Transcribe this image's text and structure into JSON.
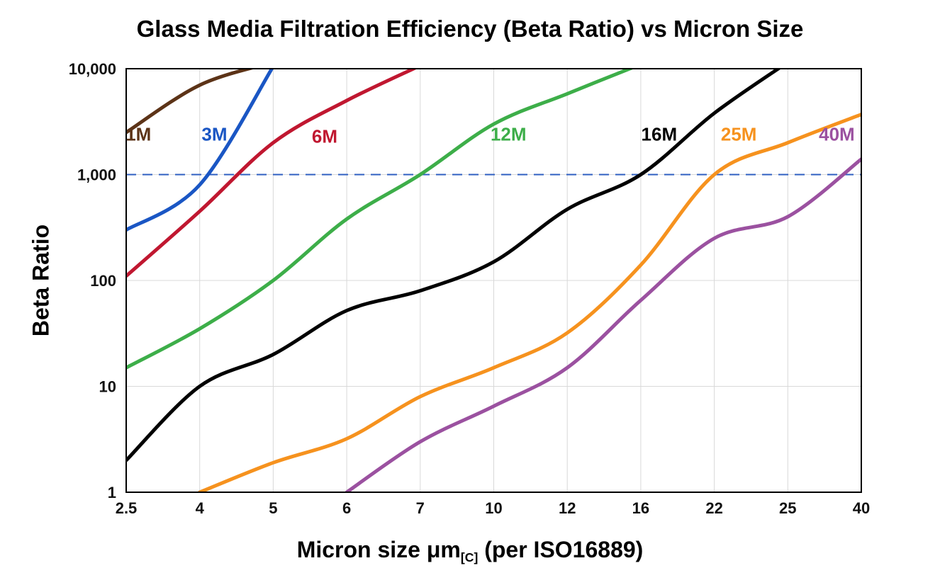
{
  "title": "Glass Media Filtration Efficiency (Beta Ratio) vs Micron Size",
  "chart_data": {
    "type": "line",
    "title": "Glass Media Filtration Efficiency (Beta Ratio) vs Micron Size",
    "ylabel": "Beta Ratio",
    "xlabel": {
      "pre": "Micron size μm",
      "sub": "[C]",
      "post": " (per ISO16889)"
    },
    "x_axis_type": "category-equal-spacing",
    "x_categories": [
      2.5,
      4,
      5,
      6,
      7,
      10,
      12,
      16,
      22,
      25,
      40
    ],
    "x_tick_labels": [
      "2.5",
      "4",
      "5",
      "6",
      "7",
      "10",
      "12",
      "16",
      "22",
      "25",
      "40"
    ],
    "y_scale": "log",
    "ylim": [
      1,
      10000
    ],
    "y_ticks": [
      1,
      10,
      100,
      1000,
      10000
    ],
    "y_tick_labels": [
      "1",
      "10",
      "100",
      "1,000",
      "10,000"
    ],
    "grid": true,
    "grid_color": "#d8d8d8",
    "border_color": "#000000",
    "reference_line": {
      "value": 1000,
      "style": "dashed",
      "color": "#2f5fc1"
    },
    "series": [
      {
        "name": "1M",
        "color": "#5c3317",
        "points": [
          [
            2.5,
            2500
          ],
          [
            4,
            7000
          ],
          [
            5,
            11500
          ]
        ],
        "label_pos": {
          "x": 2.75,
          "y": 2100
        }
      },
      {
        "name": "3M",
        "color": "#1a56c4",
        "points": [
          [
            2.5,
            300
          ],
          [
            4,
            800
          ],
          [
            5,
            10500
          ]
        ],
        "label_pos": {
          "x": 4.2,
          "y": 2100
        }
      },
      {
        "name": "6M",
        "color": "#c01730",
        "points": [
          [
            2.5,
            110
          ],
          [
            4,
            450
          ],
          [
            5,
            2000
          ],
          [
            6,
            5000
          ],
          [
            7,
            10700
          ]
        ],
        "label_pos": {
          "x": 5.7,
          "y": 2000
        }
      },
      {
        "name": "12M",
        "color": "#3dae49",
        "points": [
          [
            2.5,
            15
          ],
          [
            4,
            35
          ],
          [
            5,
            100
          ],
          [
            6,
            380
          ],
          [
            7,
            1000
          ],
          [
            10,
            3000
          ],
          [
            12,
            5800
          ],
          [
            16,
            11000
          ]
        ],
        "label_pos": {
          "x": 10.4,
          "y": 2100
        }
      },
      {
        "name": "16M",
        "color": "#000000",
        "points": [
          [
            2.5,
            2
          ],
          [
            4,
            10
          ],
          [
            5,
            20
          ],
          [
            6,
            52
          ],
          [
            7,
            80
          ],
          [
            10,
            150
          ],
          [
            12,
            470
          ],
          [
            16,
            1000
          ],
          [
            22,
            3800
          ],
          [
            25,
            11500
          ]
        ],
        "label_pos": {
          "x": 17.5,
          "y": 2100
        }
      },
      {
        "name": "25M",
        "color": "#f6921e",
        "points": [
          [
            4,
            1
          ],
          [
            5,
            1.9
          ],
          [
            6,
            3.2
          ],
          [
            7,
            8
          ],
          [
            10,
            15
          ],
          [
            12,
            32
          ],
          [
            16,
            140
          ],
          [
            22,
            1000
          ],
          [
            25,
            2000
          ],
          [
            40,
            3700
          ]
        ],
        "label_pos": {
          "x": 23,
          "y": 2100
        }
      },
      {
        "name": "40M",
        "color": "#9b51a0",
        "points": [
          [
            6,
            1
          ],
          [
            7,
            3
          ],
          [
            10,
            6.5
          ],
          [
            12,
            15
          ],
          [
            16,
            65
          ],
          [
            22,
            250
          ],
          [
            25,
            400
          ],
          [
            40,
            1400
          ]
        ],
        "label_pos": {
          "x": 35,
          "y": 2100
        }
      }
    ]
  }
}
